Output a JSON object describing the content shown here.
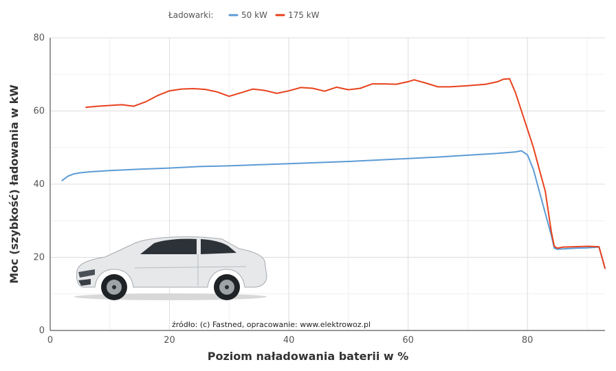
{
  "chart_data": {
    "type": "line",
    "xlabel": "Poziom naładowania baterii w %",
    "ylabel": "Moc (szybkość) ładowania w kW",
    "xlim": [
      0,
      93
    ],
    "ylim": [
      0,
      80
    ],
    "xticks": [
      0,
      20,
      40,
      60,
      80
    ],
    "yticks": [
      0,
      20,
      40,
      60,
      80
    ],
    "grid": true,
    "legend": {
      "title": "Ładowarki:",
      "position": "top"
    },
    "source_note": "źródło: (c) Fastned, opracowanie: www.elektrowoz.pl",
    "series": [
      {
        "name": "50 kW",
        "color": "#5b9bd5",
        "points": [
          [
            2,
            41.0
          ],
          [
            3,
            42.2
          ],
          [
            4,
            42.8
          ],
          [
            5,
            43.1
          ],
          [
            7,
            43.4
          ],
          [
            10,
            43.7
          ],
          [
            15,
            44.1
          ],
          [
            20,
            44.4
          ],
          [
            25,
            44.8
          ],
          [
            30,
            45.0
          ],
          [
            35,
            45.3
          ],
          [
            40,
            45.6
          ],
          [
            45,
            45.9
          ],
          [
            50,
            46.2
          ],
          [
            55,
            46.6
          ],
          [
            60,
            47.0
          ],
          [
            65,
            47.4
          ],
          [
            70,
            47.9
          ],
          [
            75,
            48.4
          ],
          [
            78,
            48.8
          ],
          [
            79,
            49.1
          ],
          [
            80,
            48.0
          ],
          [
            81,
            44.0
          ],
          [
            82,
            38.0
          ],
          [
            83,
            32.0
          ],
          [
            84,
            26.0
          ],
          [
            84.5,
            22.5
          ],
          [
            85,
            22.2
          ],
          [
            86,
            22.3
          ],
          [
            88,
            22.5
          ],
          [
            90,
            22.6
          ],
          [
            92,
            22.8
          ],
          [
            93,
            17.0
          ]
        ]
      },
      {
        "name": "175 kW",
        "color": "#e8401c",
        "points": [
          [
            6,
            61.0
          ],
          [
            8,
            61.3
          ],
          [
            10,
            61.5
          ],
          [
            12,
            61.7
          ],
          [
            14,
            61.3
          ],
          [
            16,
            62.5
          ],
          [
            18,
            64.2
          ],
          [
            20,
            65.5
          ],
          [
            22,
            66.0
          ],
          [
            24,
            66.1
          ],
          [
            26,
            65.9
          ],
          [
            28,
            65.2
          ],
          [
            30,
            64.0
          ],
          [
            32,
            65.0
          ],
          [
            34,
            66.0
          ],
          [
            36,
            65.6
          ],
          [
            38,
            64.8
          ],
          [
            40,
            65.5
          ],
          [
            42,
            66.4
          ],
          [
            44,
            66.2
          ],
          [
            46,
            65.4
          ],
          [
            48,
            66.5
          ],
          [
            50,
            65.8
          ],
          [
            52,
            66.2
          ],
          [
            54,
            67.4
          ],
          [
            56,
            67.4
          ],
          [
            58,
            67.3
          ],
          [
            60,
            68.0
          ],
          [
            61,
            68.5
          ],
          [
            63,
            67.6
          ],
          [
            65,
            66.6
          ],
          [
            67,
            66.6
          ],
          [
            70,
            66.9
          ],
          [
            73,
            67.3
          ],
          [
            75,
            68.0
          ],
          [
            76,
            68.7
          ],
          [
            77,
            68.8
          ],
          [
            78,
            65.0
          ],
          [
            79,
            60.0
          ],
          [
            80,
            55.0
          ],
          [
            81,
            50.0
          ],
          [
            82,
            44.0
          ],
          [
            83,
            38.0
          ],
          [
            84,
            27.0
          ],
          [
            84.5,
            23.0
          ],
          [
            85,
            22.5
          ],
          [
            86,
            22.8
          ],
          [
            88,
            22.9
          ],
          [
            90,
            23.0
          ],
          [
            92,
            22.9
          ],
          [
            93,
            17.0
          ]
        ]
      }
    ]
  }
}
